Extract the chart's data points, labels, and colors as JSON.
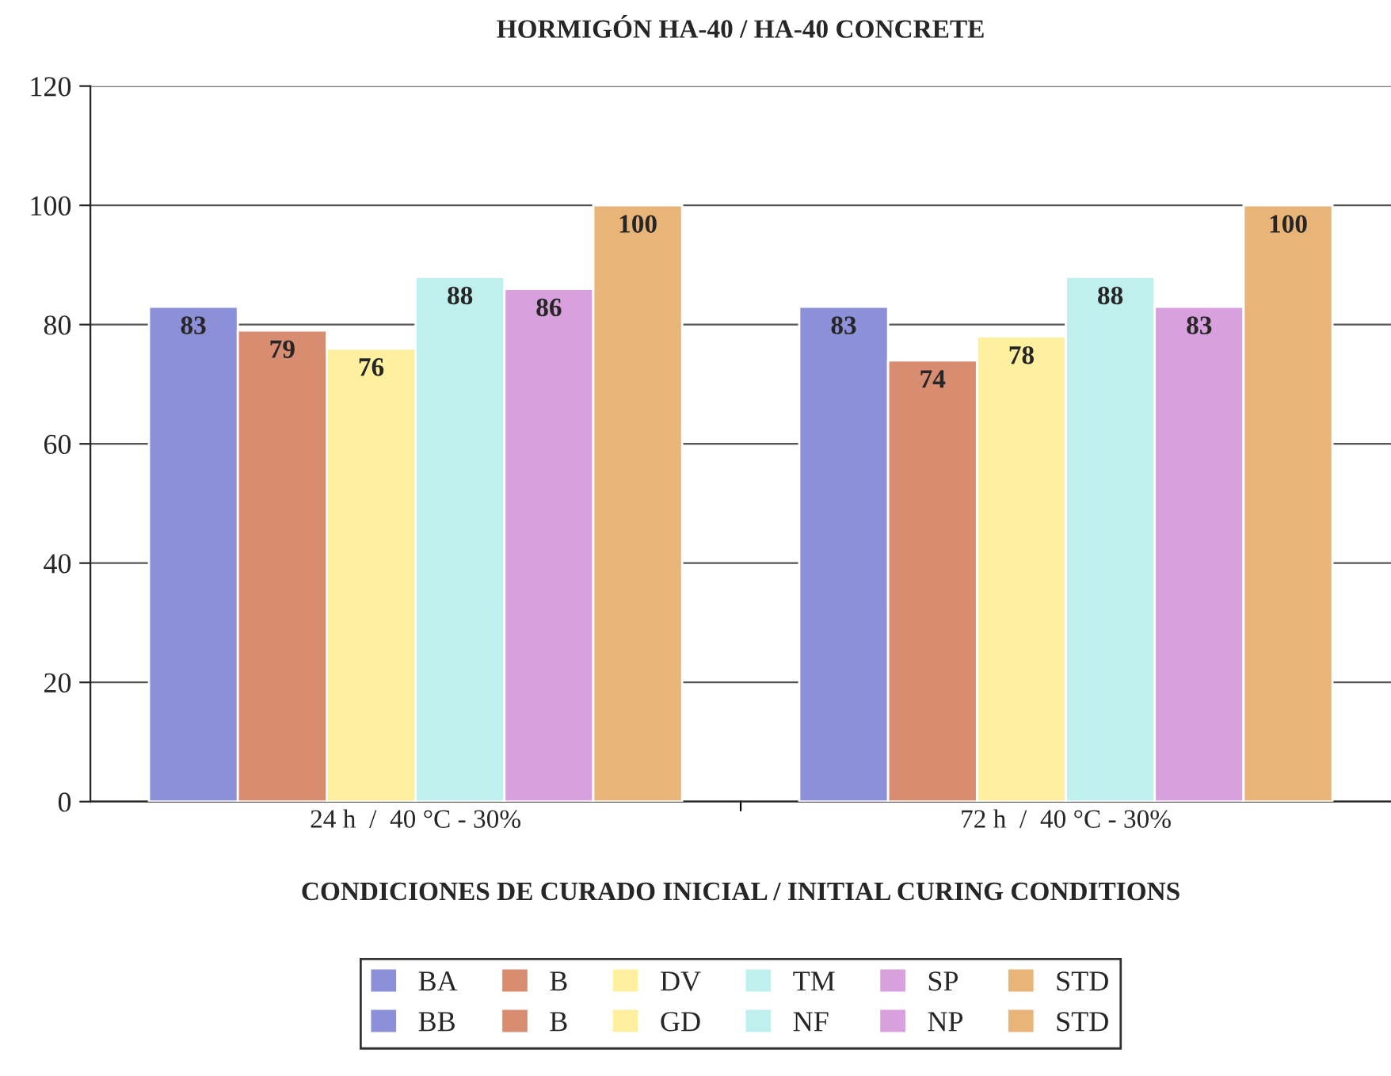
{
  "chart_data": {
    "type": "bar",
    "title": "HORMIGÓN HA-40 / HA-40 CONCRETE",
    "xlabel": "CONDICIONES DE CURADO INICIAL / INITIAL CURING CONDITIONS",
    "categories": [
      "24 h  /  40 °C - 30%",
      "72 h  /  40 °C - 30%"
    ],
    "series": [
      {
        "name": "BA",
        "color": "#8c90d8",
        "values": [
          83,
          null
        ]
      },
      {
        "name": "B",
        "color": "#d88c70",
        "values": [
          79,
          null
        ]
      },
      {
        "name": "DV",
        "color": "#fff0a0",
        "values": [
          76,
          null
        ]
      },
      {
        "name": "TM",
        "color": "#c0f0ee",
        "values": [
          88,
          null
        ]
      },
      {
        "name": "SP",
        "color": "#d8a0dc",
        "values": [
          86,
          null
        ]
      },
      {
        "name": "STD",
        "color": "#e8b478",
        "values": [
          100,
          null
        ]
      },
      {
        "name": "BB",
        "color": "#8c90d8",
        "values": [
          null,
          83
        ]
      },
      {
        "name": "B",
        "color": "#d88c70",
        "values": [
          null,
          74
        ]
      },
      {
        "name": "GD",
        "color": "#fff0a0",
        "values": [
          null,
          78
        ]
      },
      {
        "name": "NF",
        "color": "#c0f0ee",
        "values": [
          null,
          88
        ]
      },
      {
        "name": "NP",
        "color": "#d8a0dc",
        "values": [
          null,
          83
        ]
      },
      {
        "name": "STD",
        "color": "#e8b478",
        "values": [
          null,
          100
        ]
      }
    ],
    "ylim": [
      0,
      120
    ],
    "yticks": [
      0,
      20,
      40,
      60,
      80,
      100,
      120
    ],
    "grid": "y",
    "legend": "bottom",
    "data_labels": true
  }
}
